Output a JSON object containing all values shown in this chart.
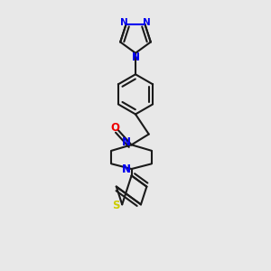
{
  "bg_color": "#e8e8e8",
  "bond_color": "#1a1a1a",
  "N_color": "#0000ee",
  "O_color": "#ee0000",
  "S_color": "#cccc00",
  "lw": 1.5,
  "fig_width": 3.0,
  "fig_height": 3.0,
  "dpi": 100,
  "xlim": [
    0,
    10
  ],
  "ylim": [
    0,
    10
  ]
}
